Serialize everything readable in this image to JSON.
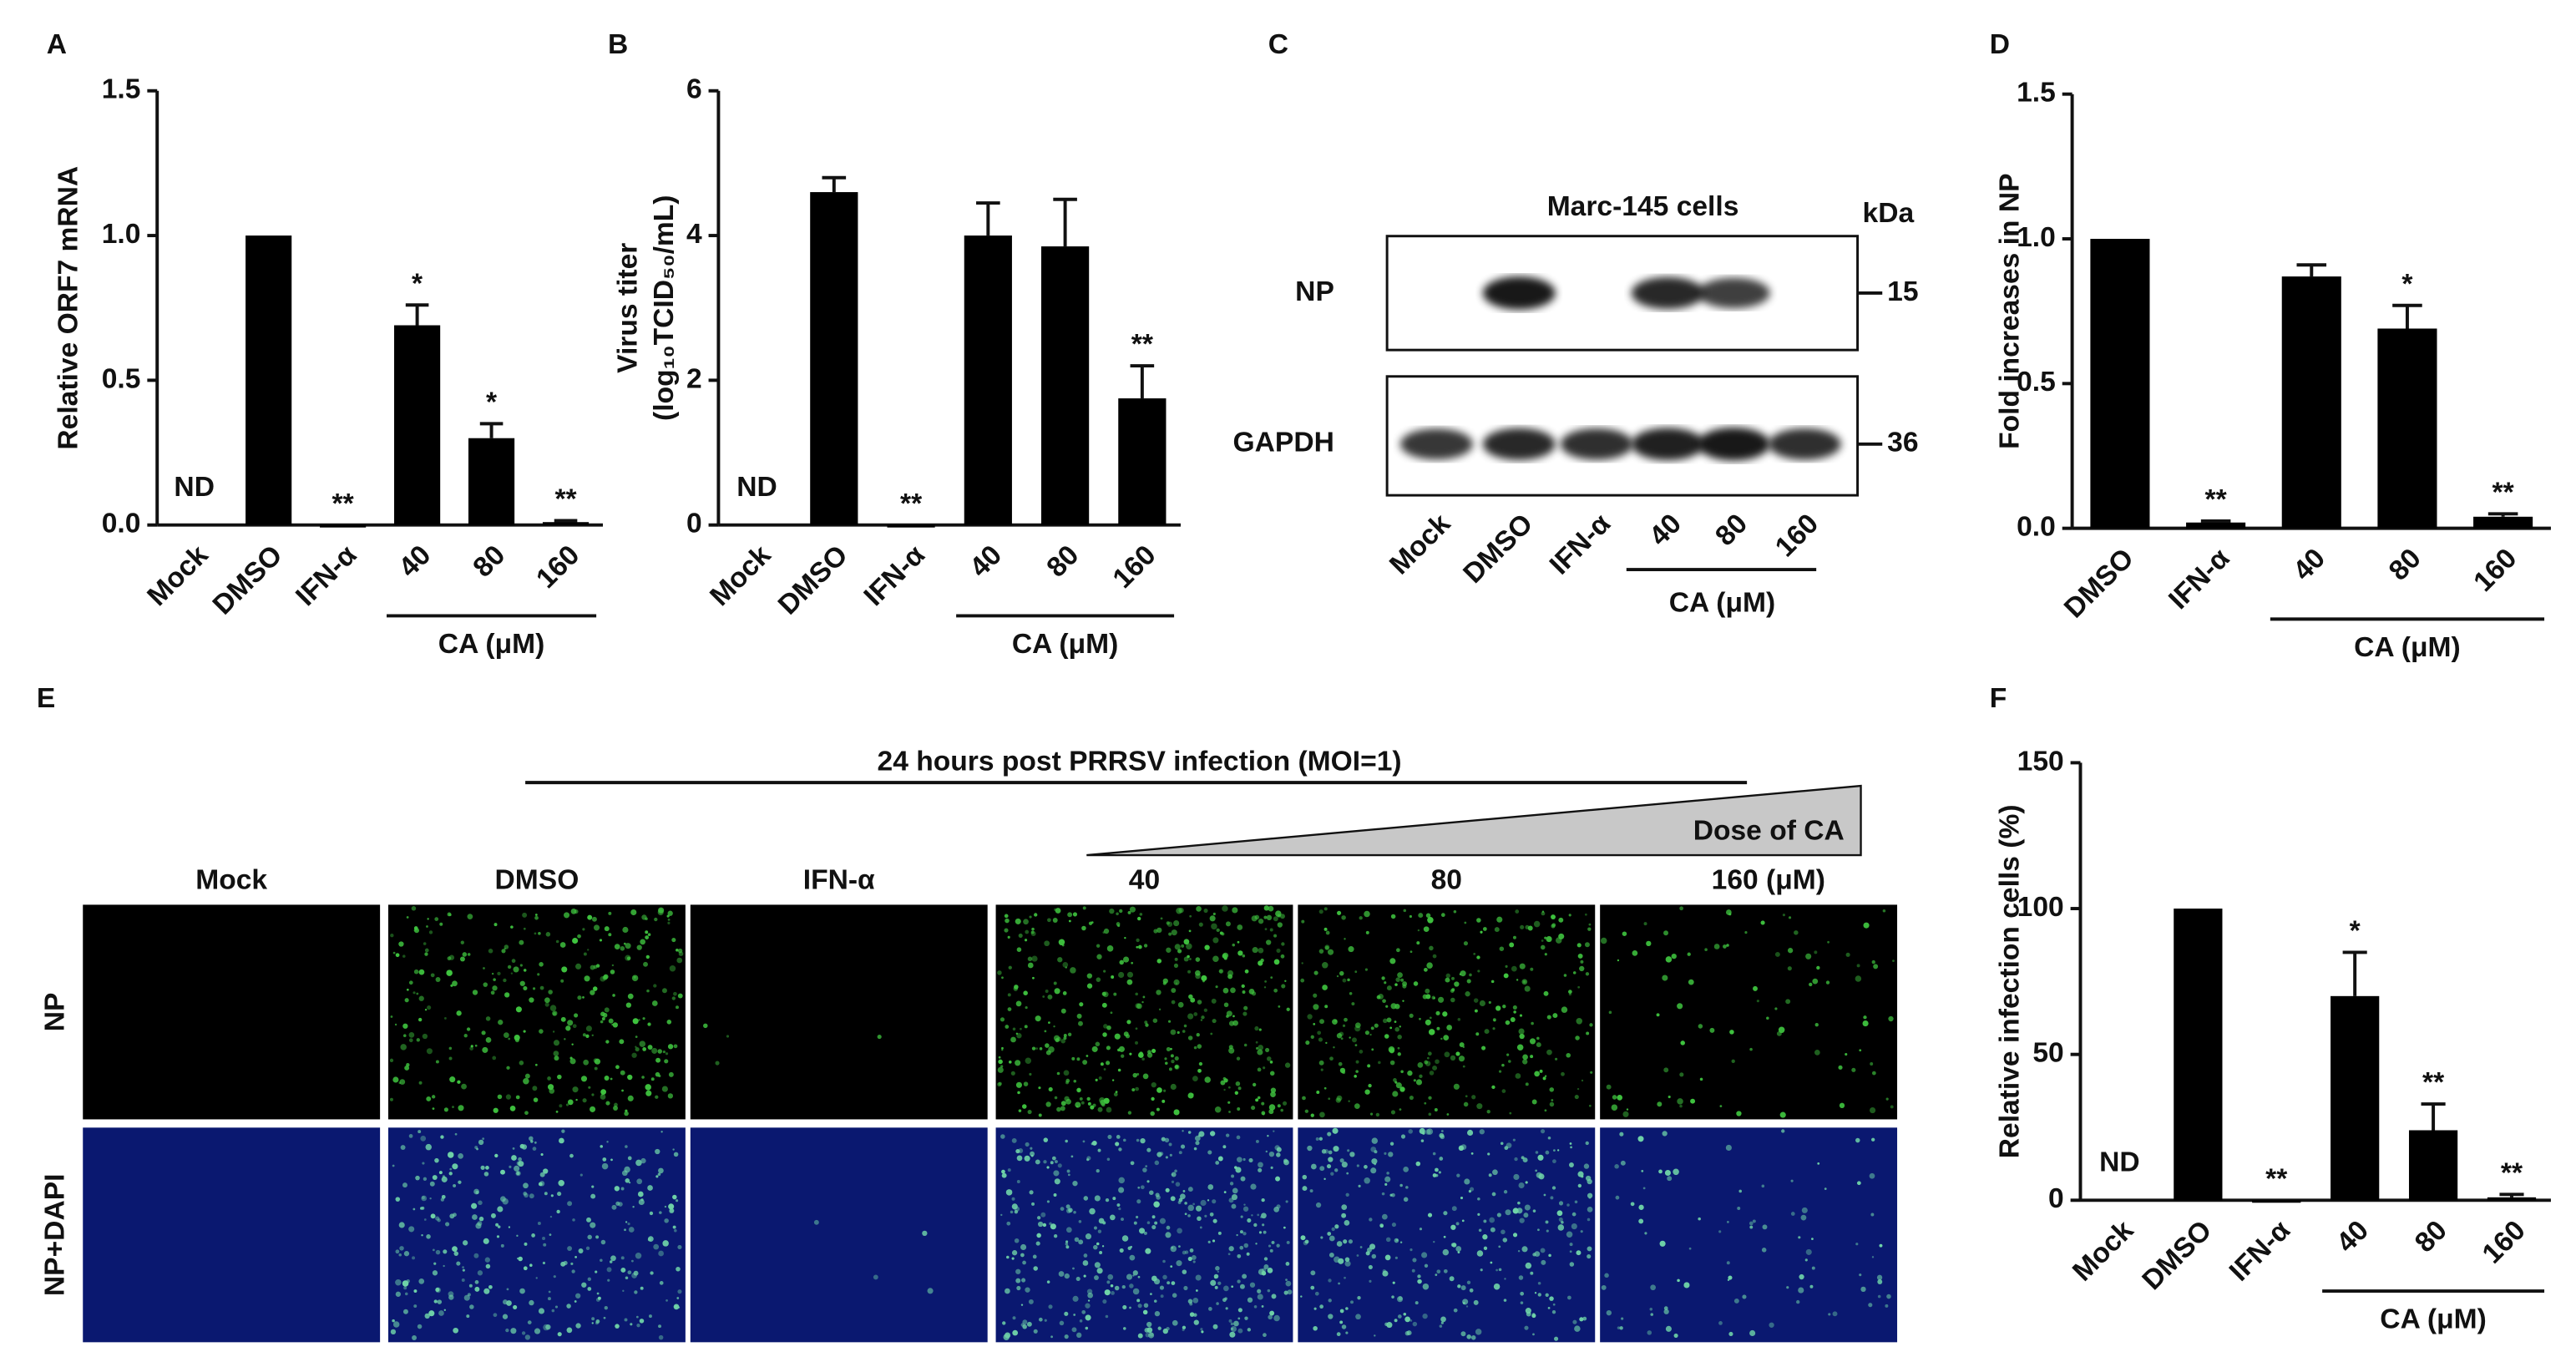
{
  "chart_data": [
    {
      "type": "bar",
      "panel": "A",
      "ylabel": [
        "Relative ORF7 mRNA"
      ],
      "categories": [
        "Mock",
        "DMSO",
        "IFN-α",
        "40",
        "80",
        "160"
      ],
      "values": [
        null,
        1,
        0,
        0.69,
        0.3,
        0.01
      ],
      "errors": [
        null,
        null,
        null,
        0.07,
        0.05,
        0.005
      ],
      "annotations": [
        "ND",
        null,
        "**",
        "*",
        "*",
        "**"
      ],
      "group_label": "CA (μM)",
      "color": "#000000",
      "ylim": [
        0,
        1.5
      ],
      "yticks": [
        {
          "value": 0,
          "label": "0.0"
        },
        {
          "value": 0.5,
          "label": "0.5"
        },
        {
          "value": 1,
          "label": "1.0"
        },
        {
          "value": 1.5,
          "label": "1.5"
        }
      ]
    },
    {
      "type": "bar",
      "panel": "B",
      "ylabel": [
        "Virus titer",
        "(log₁₀TCID₅₀/mL)"
      ],
      "categories": [
        "Mock",
        "DMSO",
        "IFN-α",
        "40",
        "80",
        "160"
      ],
      "values": [
        null,
        4.6,
        0,
        4.0,
        3.85,
        1.75
      ],
      "errors": [
        null,
        0.2,
        null,
        0.45,
        0.65,
        0.45
      ],
      "annotations": [
        "ND",
        null,
        "**",
        null,
        null,
        "**"
      ],
      "group_label": "CA (μM)",
      "color": "#000000",
      "ylim": [
        0,
        6
      ],
      "yticks": [
        0,
        2,
        4,
        6
      ]
    },
    {
      "type": "bar",
      "panel": "D",
      "ylabel": [
        "Fold increases in NP"
      ],
      "categories": [
        "DMSO",
        "IFN-α",
        "40",
        "80",
        "160"
      ],
      "values": [
        1,
        0.02,
        0.87,
        0.69,
        0.04
      ],
      "errors": [
        null,
        0.005,
        0.04,
        0.08,
        0.01
      ],
      "annotations": [
        null,
        "**",
        null,
        "*",
        "**"
      ],
      "group_label": "CA (μM)",
      "color": "#000000",
      "ylim": [
        0,
        1.5
      ],
      "yticks": [
        {
          "value": 0,
          "label": "0.0"
        },
        {
          "value": 0.5,
          "label": "0.5"
        },
        {
          "value": 1,
          "label": "1.0"
        },
        {
          "value": 1.5,
          "label": "1.5"
        }
      ]
    },
    {
      "type": "bar",
      "panel": "F",
      "ylabel": [
        "Relative infection cells (%)"
      ],
      "categories": [
        "Mock",
        "DMSO",
        "IFN-α",
        "40",
        "80",
        "160"
      ],
      "values": [
        null,
        100,
        0,
        70,
        24,
        1
      ],
      "errors": [
        null,
        null,
        null,
        15,
        9,
        1
      ],
      "annotations": [
        "ND",
        null,
        "**",
        "*",
        "**",
        "**"
      ],
      "group_label": "CA (μM)",
      "color": "#000000",
      "ylim": [
        0,
        150
      ],
      "yticks": [
        0,
        50,
        100,
        150
      ]
    }
  ],
  "blot": {
    "panel": "C",
    "title": "Marc-145 cells",
    "unit": "kDa",
    "rows": [
      {
        "label": "NP",
        "marker": "15"
      },
      {
        "label": "GAPDH",
        "marker": "36"
      }
    ],
    "lanes": [
      "Mock",
      "DMSO",
      "IFN-α",
      "40",
      "80",
      "160"
    ],
    "group_label": "CA (μM)"
  },
  "images": {
    "panel": "E",
    "title": "24 hours post PRRSV infection (MOI=1)",
    "dose_label": "Dose of CA",
    "columns": [
      "Mock",
      "DMSO",
      "IFN-α",
      "40",
      "80",
      "160 (μM)"
    ],
    "rows": [
      "NP",
      "NP+DAPI"
    ]
  }
}
